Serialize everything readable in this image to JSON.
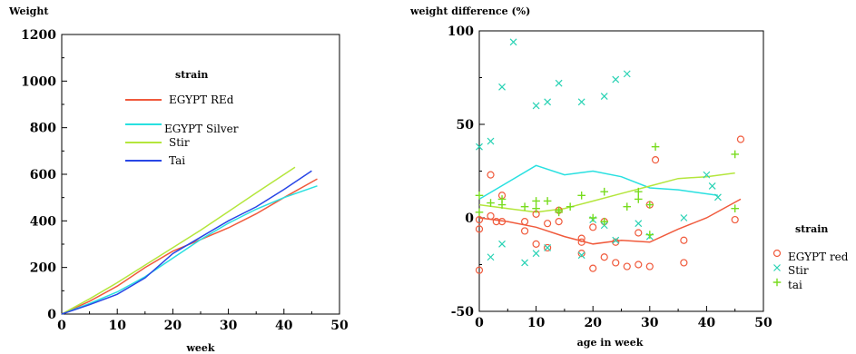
{
  "colors": {
    "egypt_red": "#f05a3c",
    "egypt_silver": "#28e0e0",
    "stir": "#b4e63c",
    "tai": "#2846e6",
    "stir_marker": "#28d2b4",
    "tai_marker": "#78dc1e"
  },
  "chart_data": [
    {
      "type": "line",
      "ylabel": "Weight",
      "xlabel": "week",
      "xlim": [
        0,
        50
      ],
      "ylim": [
        0,
        1200
      ],
      "xticks": [
        0,
        10,
        20,
        30,
        40,
        50
      ],
      "yticks": [
        0,
        200,
        400,
        600,
        800,
        1000,
        1200
      ],
      "grid": false,
      "legend": {
        "title": "strain",
        "position": "top-left inside"
      },
      "series": [
        {
          "name": "EGYPT REd",
          "color_key": "egypt_red",
          "x": [
            0,
            5,
            10,
            15,
            20,
            25,
            30,
            35,
            40,
            46
          ],
          "y": [
            0,
            55,
            120,
            200,
            270,
            320,
            370,
            430,
            500,
            580
          ]
        },
        {
          "name": "EGYPT  Silver",
          "color_key": "egypt_silver",
          "x": [
            0,
            5,
            10,
            15,
            20,
            25,
            30,
            35,
            40,
            46
          ],
          "y": [
            0,
            45,
            95,
            160,
            240,
            320,
            390,
            450,
            500,
            550
          ]
        },
        {
          "name": "Stir",
          "color_key": "stir",
          "x": [
            0,
            5,
            10,
            15,
            20,
            25,
            30,
            35,
            42
          ],
          "y": [
            0,
            65,
            135,
            210,
            285,
            360,
            440,
            520,
            630
          ]
        },
        {
          "name": "Tai",
          "color_key": "tai",
          "x": [
            0,
            5,
            10,
            15,
            20,
            25,
            30,
            35,
            40,
            45
          ],
          "y": [
            0,
            40,
            85,
            155,
            260,
            330,
            400,
            460,
            535,
            615
          ]
        }
      ]
    },
    {
      "type": "scatter",
      "ylabel": "weight difference (%)",
      "xlabel": "age in week",
      "xlim": [
        0,
        50
      ],
      "ylim": [
        -50,
        100
      ],
      "xticks": [
        0,
        10,
        20,
        30,
        40,
        50
      ],
      "yticks": [
        -50,
        0,
        50,
        100
      ],
      "grid": false,
      "legend": {
        "title": "strain",
        "position": "right outside"
      },
      "series": [
        {
          "name": "EGYPT red",
          "marker": "circle",
          "color_key": "egypt_red",
          "points": [
            [
              0,
              -28
            ],
            [
              0,
              -6
            ],
            [
              0,
              -1
            ],
            [
              2,
              23
            ],
            [
              2,
              1
            ],
            [
              3,
              -2
            ],
            [
              4,
              -2
            ],
            [
              4,
              12
            ],
            [
              8,
              -2
            ],
            [
              8,
              -7
            ],
            [
              10,
              2
            ],
            [
              10,
              -14
            ],
            [
              12,
              -16
            ],
            [
              12,
              -3
            ],
            [
              14,
              -2
            ],
            [
              14,
              4
            ],
            [
              18,
              -11
            ],
            [
              18,
              -13
            ],
            [
              18,
              -19
            ],
            [
              20,
              -5
            ],
            [
              20,
              -27
            ],
            [
              22,
              -2
            ],
            [
              22,
              -21
            ],
            [
              24,
              -13
            ],
            [
              24,
              -24
            ],
            [
              26,
              -26
            ],
            [
              28,
              -8
            ],
            [
              28,
              -25
            ],
            [
              30,
              7
            ],
            [
              30,
              -26
            ],
            [
              31,
              31
            ],
            [
              36,
              -24
            ],
            [
              36,
              -12
            ],
            [
              45,
              -1
            ],
            [
              46,
              42
            ]
          ],
          "trend": {
            "x": [
              0,
              5,
              10,
              15,
              20,
              25,
              30,
              35,
              40,
              46
            ],
            "y": [
              0,
              -2,
              -5,
              -10,
              -14,
              -12,
              -13,
              -6,
              0,
              10
            ]
          }
        },
        {
          "name": "Stir",
          "marker": "x",
          "color_key": "stir_marker",
          "points": [
            [
              0,
              38
            ],
            [
              2,
              41
            ],
            [
              2,
              -21
            ],
            [
              4,
              70
            ],
            [
              4,
              -14
            ],
            [
              6,
              94
            ],
            [
              8,
              -24
            ],
            [
              10,
              60
            ],
            [
              10,
              -19
            ],
            [
              12,
              62
            ],
            [
              12,
              -16
            ],
            [
              14,
              72
            ],
            [
              18,
              62
            ],
            [
              18,
              -20
            ],
            [
              20,
              -1
            ],
            [
              22,
              65
            ],
            [
              22,
              -4
            ],
            [
              24,
              74
            ],
            [
              24,
              -12
            ],
            [
              26,
              77
            ],
            [
              28,
              -3
            ],
            [
              30,
              -10
            ],
            [
              36,
              0
            ],
            [
              40,
              23
            ],
            [
              41,
              17
            ],
            [
              42,
              11
            ]
          ],
          "trend": {
            "x": [
              0,
              5,
              10,
              15,
              20,
              25,
              30,
              35,
              42
            ],
            "y": [
              10,
              19,
              28,
              23,
              25,
              22,
              16,
              15,
              12
            ]
          }
        },
        {
          "name": "tai",
          "marker": "plus",
          "color_key": "tai_marker",
          "points": [
            [
              0,
              12
            ],
            [
              0,
              3
            ],
            [
              2,
              8
            ],
            [
              4,
              10
            ],
            [
              4,
              7
            ],
            [
              8,
              6
            ],
            [
              10,
              9
            ],
            [
              10,
              5
            ],
            [
              12,
              9
            ],
            [
              14,
              4
            ],
            [
              14,
              3
            ],
            [
              16,
              6
            ],
            [
              18,
              12
            ],
            [
              20,
              0
            ],
            [
              22,
              14
            ],
            [
              22,
              -2
            ],
            [
              26,
              6
            ],
            [
              28,
              14
            ],
            [
              28,
              10
            ],
            [
              30,
              7
            ],
            [
              30,
              -9
            ],
            [
              31,
              38
            ],
            [
              45,
              34
            ],
            [
              45,
              5
            ]
          ],
          "trend": {
            "x": [
              0,
              5,
              10,
              15,
              20,
              25,
              30,
              35,
              40,
              45
            ],
            "y": [
              7,
              5,
              3,
              5,
              9,
              13,
              17,
              21,
              22,
              24
            ]
          }
        }
      ]
    }
  ]
}
